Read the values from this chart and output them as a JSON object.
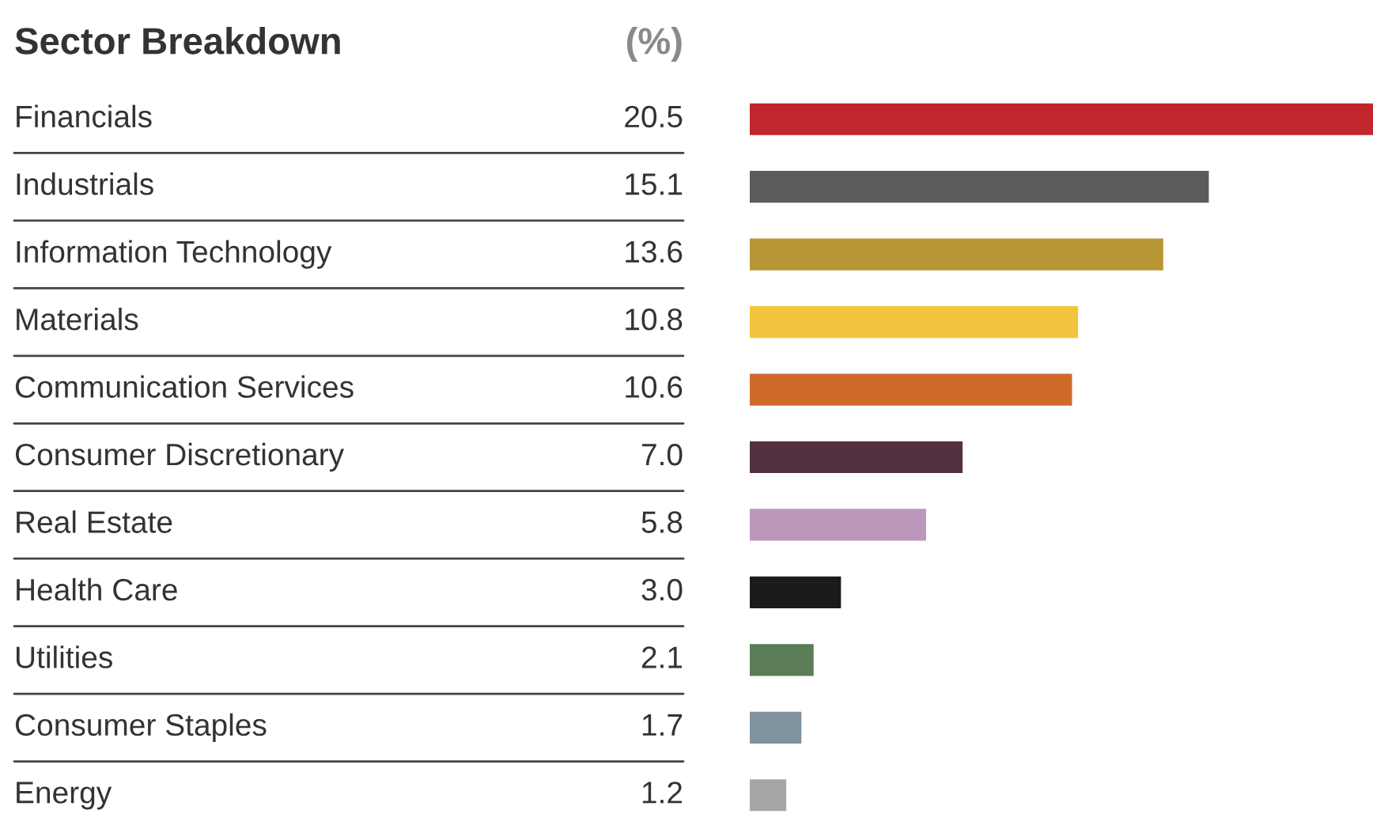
{
  "chart_data": {
    "type": "bar",
    "orientation": "horizontal",
    "title": "Sector Breakdown",
    "xlabel": "(%)",
    "categories": [
      "Financials",
      "Industrials",
      "Information Technology",
      "Materials",
      "Communication Services",
      "Consumer Discretionary",
      "Real Estate",
      "Health Care",
      "Utilities",
      "Consumer Staples",
      "Energy"
    ],
    "values": [
      20.5,
      15.1,
      13.6,
      10.8,
      10.6,
      7.0,
      5.8,
      3.0,
      2.1,
      1.7,
      1.2
    ],
    "value_labels": [
      "20.5",
      "15.1",
      "13.6",
      "10.8",
      "10.6",
      "7.0",
      "5.8",
      "3.0",
      "2.1",
      "1.7",
      "1.2"
    ],
    "colors": [
      "#c0272d",
      "#5b5b5b",
      "#b89535",
      "#f2c43d",
      "#cf6a2b",
      "#523241",
      "#bb97bb",
      "#1b1b1b",
      "#5a7c57",
      "#7f93a1",
      "#a6a6a6"
    ]
  }
}
